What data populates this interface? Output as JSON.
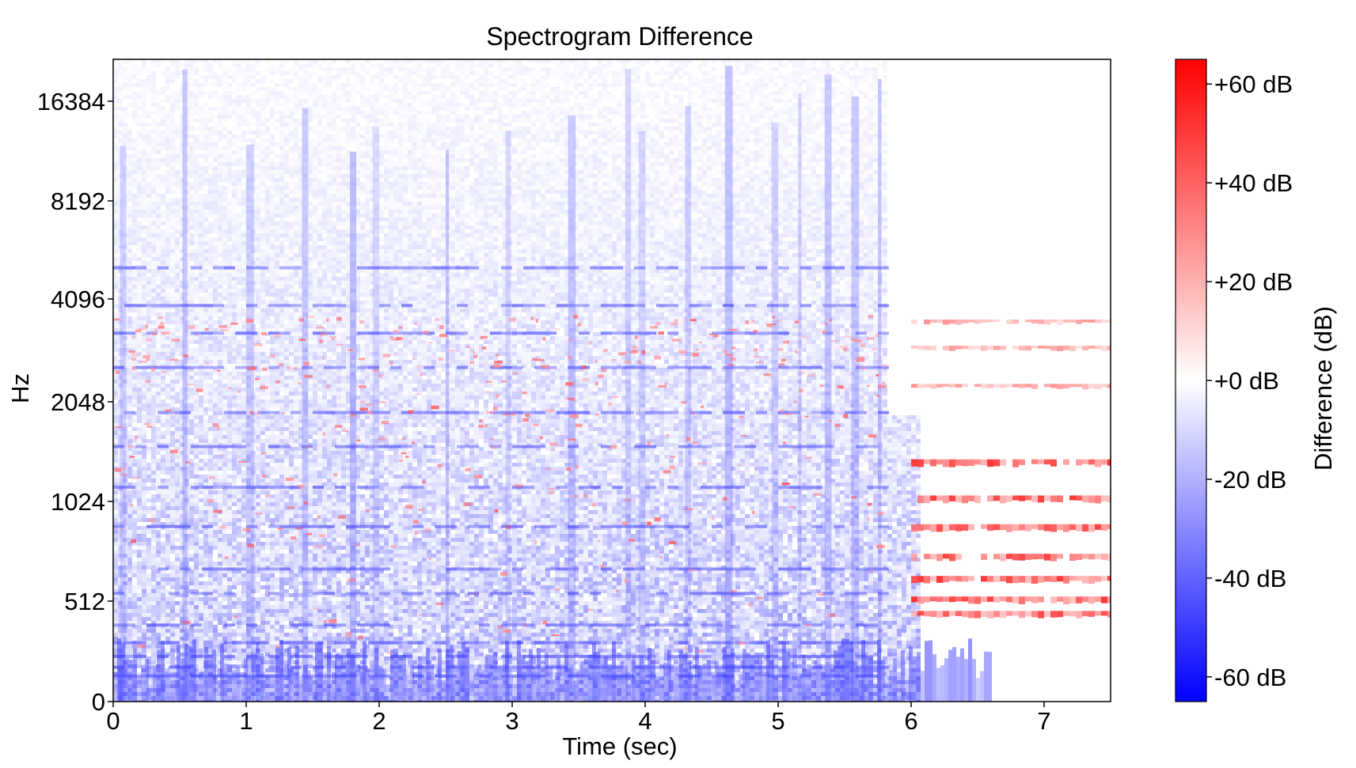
{
  "chart_data": {
    "type": "heatmap",
    "title": "Spectrogram Difference",
    "xlabel": "Time (sec)",
    "ylabel": "Hz",
    "xlim": [
      0,
      7.5
    ],
    "x_ticks": [
      0,
      1,
      2,
      3,
      4,
      5,
      6,
      7
    ],
    "x_tick_labels": [
      "0",
      "1",
      "2",
      "3",
      "4",
      "5",
      "6",
      "7"
    ],
    "y_scale": "log2",
    "y_ticks": [
      0,
      512,
      1024,
      2048,
      4096,
      8192,
      16384
    ],
    "y_tick_labels": [
      "0",
      "512",
      "1024",
      "2048",
      "4096",
      "8192",
      "16384"
    ],
    "colorbar": {
      "label": "Difference (dB)",
      "range": [
        -65,
        65
      ],
      "ticks": [
        60,
        40,
        20,
        0,
        -20,
        -40,
        -60
      ],
      "tick_labels": [
        "+60 dB",
        "+40 dB",
        "+20 dB",
        "+0 dB",
        "-20 dB",
        "-40 dB",
        "-60 dB"
      ],
      "colormap": "bwr",
      "color_low": "#0000ff",
      "color_mid": "#ffffff",
      "color_high": "#ff0000"
    },
    "regions": [
      {
        "description": "broadband negative difference (blue), strongest below 512 Hz",
        "t_start": 0,
        "t_end": 5.8,
        "typical_db": -25
      },
      {
        "description": "harmonic positive difference bands (red)",
        "t_start": 6.0,
        "t_end": 7.5,
        "typical_db": 45
      }
    ],
    "red_bands_hz": [
      450,
      520,
      600,
      700,
      860,
      1050,
      1350,
      2300,
      3000,
      3600
    ],
    "blue_bands_hz": [
      130,
      175,
      230,
      300,
      390,
      540,
      640,
      860,
      1130,
      1500,
      1900,
      2600,
      3300,
      4000,
      5200
    ]
  }
}
